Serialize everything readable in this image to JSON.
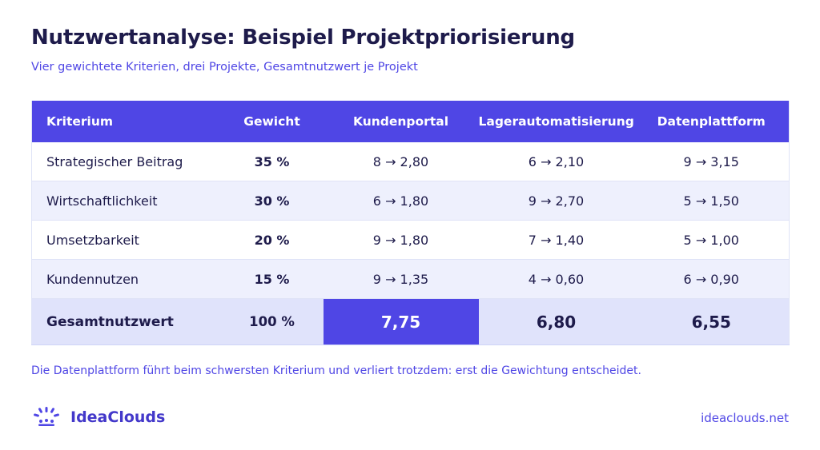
{
  "title": "Nutzwertanalyse: Beispiel Projektpriorisierung",
  "subtitle": "Vier gewichtete Kriterien, drei Projekte, Gesamtnutzwert je Projekt",
  "table": {
    "headers": [
      "Kriterium",
      "Gewicht",
      "Kundenportal",
      "Lagerautomatisierung",
      "Datenplattform"
    ],
    "rows": [
      {
        "criterion": "Strategischer Beitrag",
        "weight": "35 %",
        "cells": [
          "8  →  2,80",
          "6  →  2,10",
          "9  →  3,15"
        ]
      },
      {
        "criterion": "Wirtschaftlichkeit",
        "weight": "30 %",
        "cells": [
          "6  →  1,80",
          "9  →  2,70",
          "5  →  1,50"
        ]
      },
      {
        "criterion": "Umsetzbarkeit",
        "weight": "20 %",
        "cells": [
          "9  →  1,80",
          "7  →  1,40",
          "5  →  1,00"
        ]
      },
      {
        "criterion": "Kundennutzen",
        "weight": "15 %",
        "cells": [
          "9  →  1,35",
          "4  →  0,60",
          "6  →  0,90"
        ]
      }
    ],
    "total": {
      "label": "Gesamtnutzwert",
      "weight": "100 %",
      "values": [
        "7,75",
        "6,80",
        "6,55"
      ]
    }
  },
  "note": "Die Datenplattform führt beim schwersten Kriterium und verliert trotzdem: erst die Gewichtung entscheidet.",
  "brand": {
    "name": "IdeaClouds",
    "icon": "ideaclouds-logo-icon"
  },
  "site": "ideaclouds.net",
  "colors": {
    "accent": "#4f46e5",
    "dark": "#1e1b4b",
    "row_alt": "#eef0fd",
    "total_row": "#e0e3fb"
  }
}
